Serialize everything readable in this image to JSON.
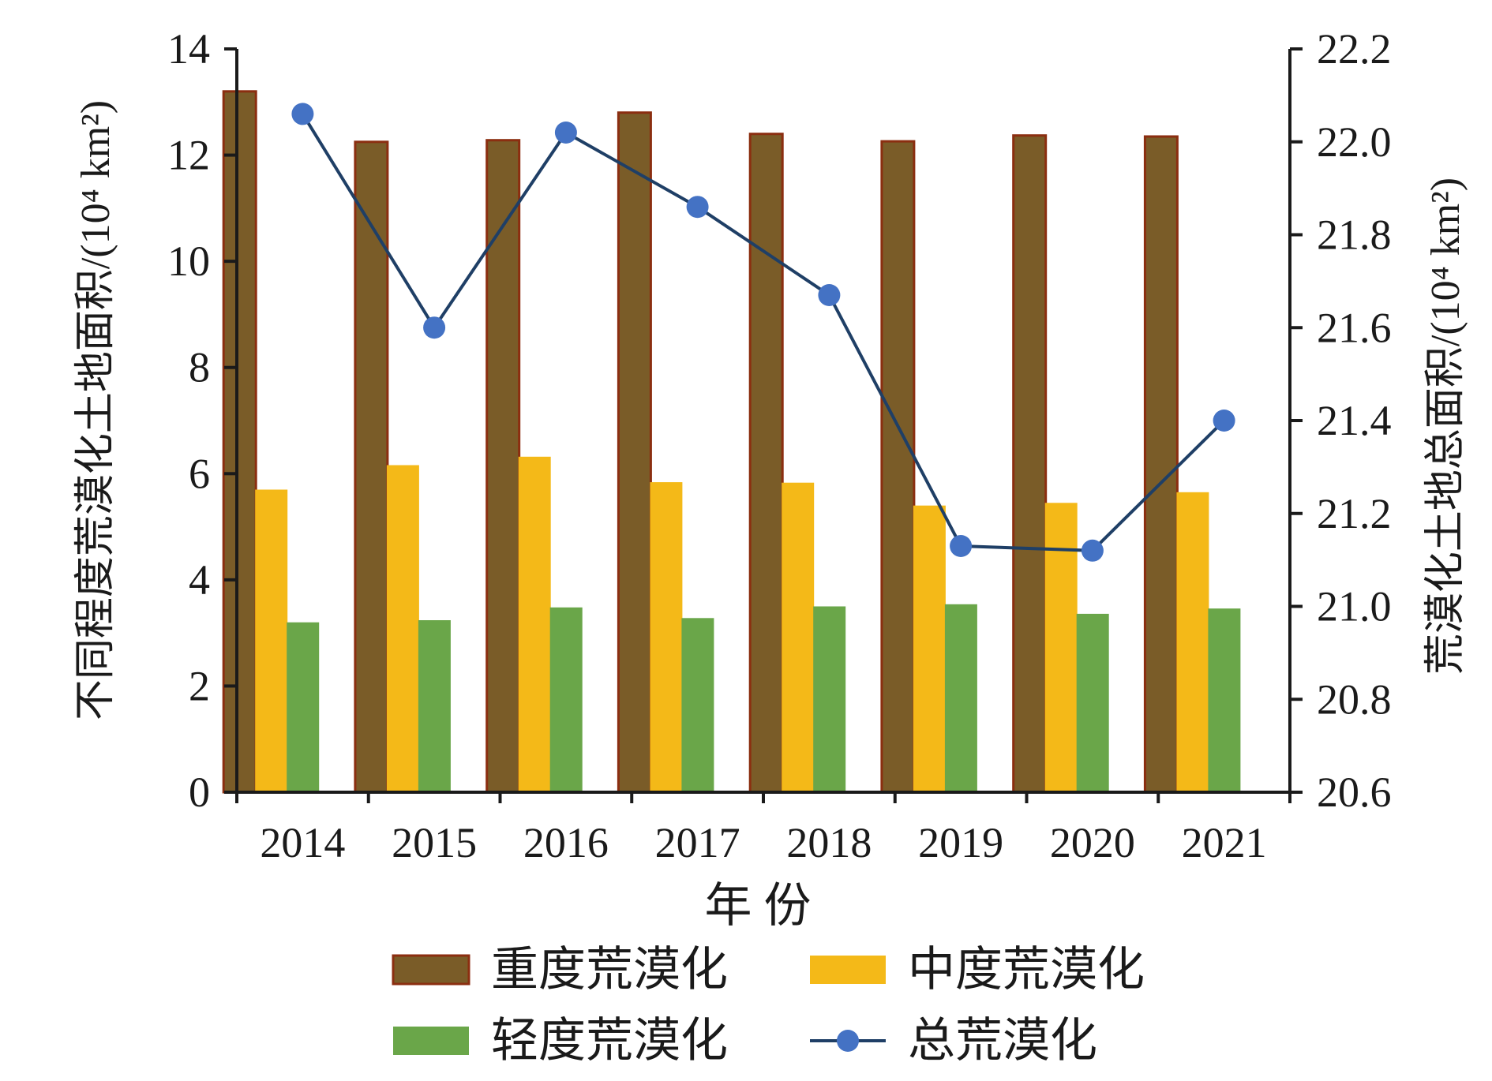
{
  "chart_data": {
    "type": "bar",
    "title": "",
    "categories": [
      "2014",
      "2015",
      "2016",
      "2017",
      "2018",
      "2019",
      "2020",
      "2021"
    ],
    "xlabel": "年 份",
    "ylabel": "不同程度荒漠化土地面积/(10⁴ km²)",
    "y2label": "荒漠化土地总面积/(10⁴ km²)",
    "ylim": [
      0,
      14
    ],
    "yticks": [
      "0",
      "2",
      "4",
      "6",
      "8",
      "10",
      "12",
      "14"
    ],
    "y2lim": [
      20.6,
      22.2
    ],
    "y2ticks": [
      "20.6",
      "20.8",
      "21.0",
      "21.2",
      "21.4",
      "21.6",
      "21.8",
      "22.0",
      "22.2"
    ],
    "grid": false,
    "legend_position": "bottom",
    "series": [
      {
        "name": "重度荒漠化",
        "kind": "bar",
        "axis": "left",
        "color": "#7a5c28",
        "edge_color": "#8b2e10",
        "values": [
          13.2,
          12.25,
          12.28,
          12.8,
          12.4,
          12.26,
          12.37,
          12.35
        ]
      },
      {
        "name": "中度荒漠化",
        "kind": "bar",
        "axis": "left",
        "color": "#f4b918",
        "values": [
          5.7,
          6.16,
          6.32,
          5.84,
          5.83,
          5.4,
          5.45,
          5.65
        ]
      },
      {
        "name": "轻度荒漠化",
        "kind": "bar",
        "axis": "left",
        "color": "#6aa649",
        "values": [
          3.2,
          3.24,
          3.48,
          3.28,
          3.5,
          3.54,
          3.36,
          3.46
        ]
      },
      {
        "name": "总荒漠化",
        "kind": "line",
        "axis": "right",
        "color": "#1f3f66",
        "marker_color": "#4472c4",
        "values": [
          22.06,
          21.6,
          22.02,
          21.86,
          21.67,
          21.13,
          21.12,
          21.4
        ]
      }
    ]
  }
}
